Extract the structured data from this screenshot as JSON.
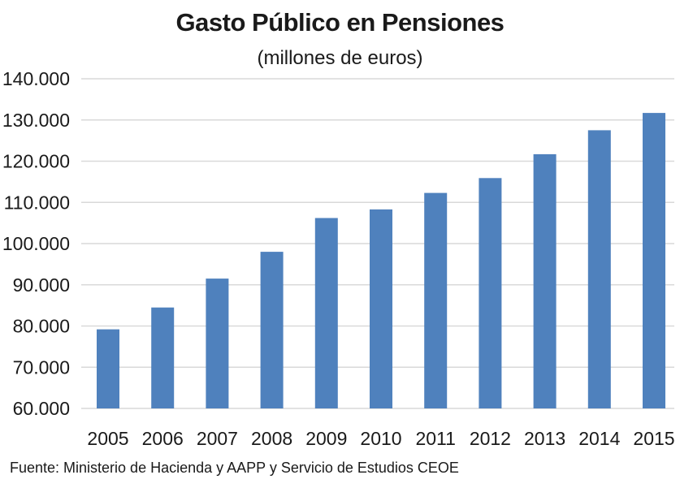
{
  "chart_data": {
    "type": "bar",
    "title": "Gasto Público en Pensiones",
    "subtitle": "(millones de euros)",
    "xlabel": "",
    "ylabel": "",
    "categories": [
      "2005",
      "2006",
      "2007",
      "2008",
      "2009",
      "2010",
      "2011",
      "2012",
      "2013",
      "2014",
      "2015"
    ],
    "values": [
      79200,
      84500,
      91500,
      98000,
      106200,
      108300,
      112300,
      115900,
      121700,
      127500,
      131700
    ],
    "ylim": [
      60000,
      140000
    ],
    "yticks": [
      60000,
      70000,
      80000,
      90000,
      100000,
      110000,
      120000,
      130000,
      140000
    ],
    "ytick_labels": [
      "60.000",
      "70.000",
      "80.000",
      "90.000",
      "100.000",
      "110.000",
      "120.000",
      "130.000",
      "140.000"
    ],
    "grid": true,
    "legend": "none",
    "bar_color": "#4f81bd",
    "grid_color": "#d9d9d9"
  },
  "source": "Fuente: Ministerio de  Hacienda y AAPP y Servicio de Estudios CEOE"
}
